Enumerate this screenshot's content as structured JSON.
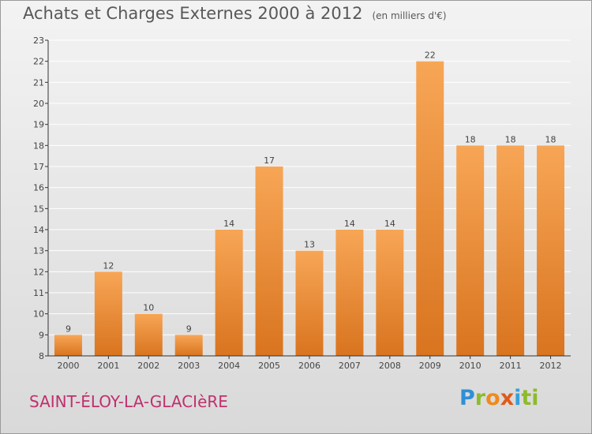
{
  "header": {
    "title": "Achats et Charges Externes 2000 à 2012",
    "unit": "(en milliers d'€)"
  },
  "commune": "SAINT-ÉLOY-LA-GLACIèRE",
  "logo": {
    "text": "Proxiti",
    "letters": [
      "P",
      "r",
      "o",
      "x",
      "i",
      "ti"
    ]
  },
  "colors": {
    "bar_top": "#f7a656",
    "bar_bottom": "#d9741f",
    "grid": "#ffffff",
    "axis": "#333333",
    "text": "#585858",
    "commune": "#c0306e"
  },
  "chart_data": {
    "type": "bar",
    "title": "Achats et Charges Externes 2000 à 2012",
    "xlabel": "",
    "ylabel": "",
    "categories": [
      "2000",
      "2001",
      "2002",
      "2003",
      "2004",
      "2005",
      "2006",
      "2007",
      "2008",
      "2009",
      "2010",
      "2011",
      "2012"
    ],
    "values": [
      9,
      12,
      10,
      9,
      14,
      17,
      13,
      14,
      14,
      22,
      18,
      18,
      18
    ],
    "ylim": [
      8,
      23
    ],
    "yticks": [
      8,
      9,
      10,
      11,
      12,
      13,
      14,
      15,
      16,
      17,
      18,
      19,
      20,
      21,
      22,
      23
    ],
    "grid": true,
    "data_labels": true
  }
}
